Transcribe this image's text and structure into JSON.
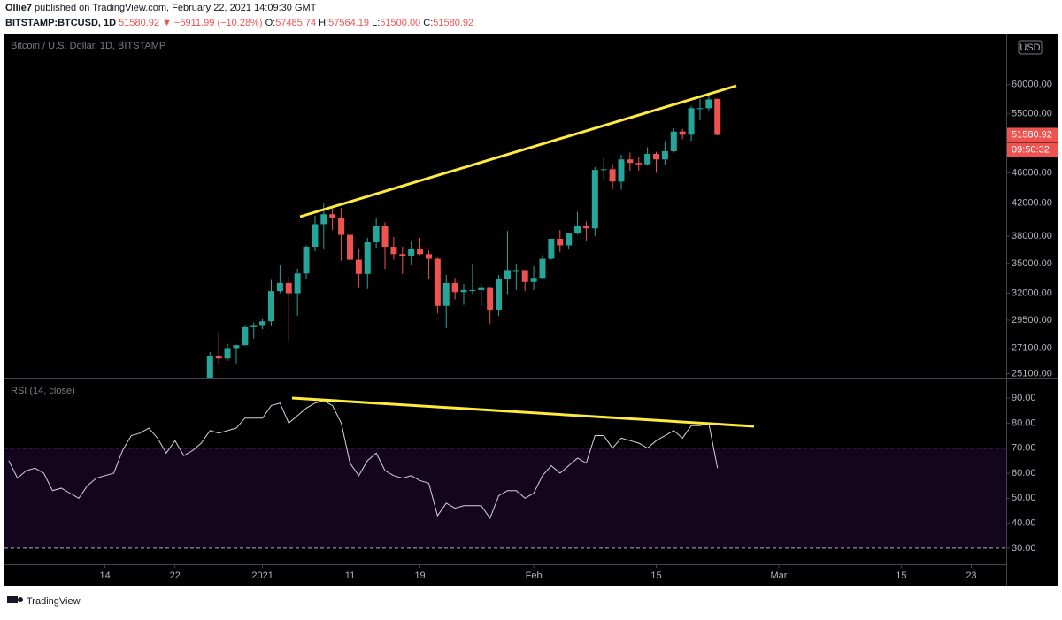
{
  "header": {
    "author": "Ollie7",
    "published": "published on TradingView.com, February 22, 2021 14:09:30 GMT",
    "symbol": "BITSTAMP:BTCUSD, 1D",
    "change": "51580.92 ▼ −5911.99 (−10.28%)",
    "ohlc": [
      {
        "label": "O:",
        "value": "57485.74"
      },
      {
        "label": "H:",
        "value": "57564.19"
      },
      {
        "label": "L:",
        "value": "51500.00"
      },
      {
        "label": "C:",
        "value": "51580.92"
      }
    ]
  },
  "footer": {
    "brand": "TradingView"
  },
  "chart_data": [
    {
      "type": "candlestick",
      "title": "Bitcoin / U.S. Dollar, 1D, BITSTAMP",
      "currency": "USD",
      "log_scale": true,
      "up_color": "#26a69a",
      "down_color": "#ef5350",
      "last_price": 51580.92,
      "countdown": "09:50:32",
      "xlim": [
        "2020-12-02",
        "2021-03-27"
      ],
      "ylim": [
        24800,
        70000
      ],
      "yticks": [
        {
          "value": 25100,
          "label": "25100.00"
        },
        {
          "value": 27100,
          "label": "27100.00"
        },
        {
          "value": 29500,
          "label": "29500.00"
        },
        {
          "value": 32000,
          "label": "32000.00"
        },
        {
          "value": 35000,
          "label": "35000.00"
        },
        {
          "value": 38000,
          "label": "38000.00"
        },
        {
          "value": 42000,
          "label": "42000.00"
        },
        {
          "value": 46000,
          "label": "46000.00"
        },
        {
          "value": 55000,
          "label": "55000.00"
        },
        {
          "value": 60000,
          "label": "60000.00"
        }
      ],
      "x": [
        "2020-12-26",
        "2020-12-27",
        "2020-12-28",
        "2020-12-29",
        "2020-12-30",
        "2020-12-31",
        "2021-01-01",
        "2021-01-02",
        "2021-01-03",
        "2021-01-04",
        "2021-01-05",
        "2021-01-06",
        "2021-01-07",
        "2021-01-08",
        "2021-01-09",
        "2021-01-10",
        "2021-01-11",
        "2021-01-12",
        "2021-01-13",
        "2021-01-14",
        "2021-01-15",
        "2021-01-16",
        "2021-01-17",
        "2021-01-18",
        "2021-01-19",
        "2021-01-20",
        "2021-01-21",
        "2021-01-22",
        "2021-01-23",
        "2021-01-24",
        "2021-01-25",
        "2021-01-26",
        "2021-01-27",
        "2021-01-28",
        "2021-01-29",
        "2021-01-30",
        "2021-01-31",
        "2021-02-01",
        "2021-02-02",
        "2021-02-03",
        "2021-02-04",
        "2021-02-05",
        "2021-02-06",
        "2021-02-07",
        "2021-02-08",
        "2021-02-09",
        "2021-02-10",
        "2021-02-11",
        "2021-02-12",
        "2021-02-13",
        "2021-02-14",
        "2021-02-15",
        "2021-02-16",
        "2021-02-17",
        "2021-02-18",
        "2021-02-19",
        "2021-02-20",
        "2021-02-21",
        "2021-02-22"
      ],
      "open": [
        24700,
        26450,
        26280,
        27050,
        27360,
        28880,
        28990,
        29400,
        32200,
        33000,
        31990,
        33950,
        36800,
        39400,
        40600,
        40150,
        38150,
        35400,
        33900,
        37300,
        39150,
        36800,
        36000,
        35800,
        36600,
        36000,
        35500,
        30800,
        33000,
        32100,
        32300,
        32300,
        32500,
        30400,
        33400,
        34300,
        34300,
        33100,
        33500,
        35500,
        37700,
        36950,
        38300,
        39200,
        38900,
        46400,
        46500,
        44800,
        47900,
        47400,
        47200,
        48700,
        47900,
        49100,
        52100,
        51600,
        55900,
        55900,
        57485.74
      ],
      "high": [
        26800,
        28400,
        27450,
        27400,
        28990,
        29300,
        29600,
        33300,
        34800,
        33600,
        34450,
        36950,
        40400,
        41950,
        41350,
        41350,
        38250,
        36600,
        37800,
        40100,
        39600,
        37900,
        36800,
        37400,
        37800,
        36400,
        35600,
        33800,
        33500,
        32900,
        34900,
        32900,
        32550,
        33800,
        38600,
        34900,
        34300,
        34700,
        35900,
        37700,
        38700,
        38300,
        40900,
        39700,
        46800,
        48100,
        47300,
        48600,
        48900,
        48200,
        49700,
        49000,
        50600,
        52600,
        52500,
        56300,
        57500,
        58300,
        57564.19
      ],
      "low": [
        24500,
        25850,
        26100,
        25900,
        27330,
        27900,
        28700,
        28960,
        32000,
        27700,
        29900,
        33400,
        36300,
        36500,
        38700,
        35300,
        30300,
        32500,
        32400,
        36700,
        34400,
        35400,
        33900,
        34800,
        35900,
        33400,
        30100,
        28800,
        31400,
        30900,
        31950,
        30800,
        29200,
        29900,
        31900,
        32300,
        32200,
        32300,
        33400,
        35400,
        36200,
        36600,
        38200,
        37400,
        38000,
        45000,
        43800,
        43700,
        46300,
        46300,
        47000,
        46000,
        47100,
        48900,
        50900,
        50600,
        53900,
        55500,
        51500
      ],
      "close": [
        26450,
        26280,
        27050,
        27360,
        28880,
        28990,
        29400,
        32200,
        33000,
        31990,
        33950,
        36800,
        39400,
        40600,
        40150,
        38150,
        35400,
        33900,
        37300,
        39150,
        36800,
        36000,
        35800,
        36600,
        36000,
        35500,
        30800,
        33000,
        32100,
        32300,
        32300,
        32500,
        30400,
        33400,
        34300,
        34300,
        33100,
        33500,
        35500,
        37700,
        36950,
        38300,
        39200,
        38900,
        46400,
        46500,
        44800,
        47900,
        47400,
        47200,
        48700,
        47900,
        49100,
        52100,
        51600,
        55900,
        55900,
        57400,
        51580.92
      ]
    },
    {
      "type": "line",
      "title": "RSI (14, close)",
      "color": "#d1d4dc",
      "band": [
        30,
        70
      ],
      "band_color": "#14051f",
      "xlim": [
        "2020-12-02",
        "2021-03-27"
      ],
      "xticks": [
        {
          "value": "2020-12-14",
          "label": "14"
        },
        {
          "value": "2020-12-22",
          "label": "22"
        },
        {
          "value": "2021-01-01",
          "label": "2021"
        },
        {
          "value": "2021-01-11",
          "label": "11"
        },
        {
          "value": "2021-01-19",
          "label": "19"
        },
        {
          "value": "2021-02-01",
          "label": "Feb"
        },
        {
          "value": "2021-02-15",
          "label": "15"
        },
        {
          "value": "2021-03-01",
          "label": "Mar"
        },
        {
          "value": "2021-03-15",
          "label": "15"
        },
        {
          "value": "2021-03-23",
          "label": "23"
        }
      ],
      "ylim": [
        23.6,
        97.8
      ],
      "yticks": [
        {
          "value": 30,
          "label": "30.00"
        },
        {
          "value": 40,
          "label": "40.00"
        },
        {
          "value": 50,
          "label": "50.00"
        },
        {
          "value": 60,
          "label": "60.00"
        },
        {
          "value": 70,
          "label": "70.00"
        },
        {
          "value": 80,
          "label": "80.00"
        },
        {
          "value": 90,
          "label": "90.00"
        }
      ],
      "x": [
        "2020-12-03",
        "2020-12-04",
        "2020-12-05",
        "2020-12-06",
        "2020-12-07",
        "2020-12-08",
        "2020-12-09",
        "2020-12-10",
        "2020-12-11",
        "2020-12-12",
        "2020-12-13",
        "2020-12-14",
        "2020-12-15",
        "2020-12-16",
        "2020-12-17",
        "2020-12-18",
        "2020-12-19",
        "2020-12-20",
        "2020-12-21",
        "2020-12-22",
        "2020-12-23",
        "2020-12-24",
        "2020-12-25",
        "2020-12-26",
        "2020-12-27",
        "2020-12-28",
        "2020-12-29",
        "2020-12-30",
        "2020-12-31",
        "2021-01-01",
        "2021-01-02",
        "2021-01-03",
        "2021-01-04",
        "2021-01-05",
        "2021-01-06",
        "2021-01-07",
        "2021-01-08",
        "2021-01-09",
        "2021-01-10",
        "2021-01-11",
        "2021-01-12",
        "2021-01-13",
        "2021-01-14",
        "2021-01-15",
        "2021-01-16",
        "2021-01-17",
        "2021-01-18",
        "2021-01-19",
        "2021-01-20",
        "2021-01-21",
        "2021-01-22",
        "2021-01-23",
        "2021-01-24",
        "2021-01-25",
        "2021-01-26",
        "2021-01-27",
        "2021-01-28",
        "2021-01-29",
        "2021-01-30",
        "2021-01-31",
        "2021-02-01",
        "2021-02-02",
        "2021-02-03",
        "2021-02-04",
        "2021-02-05",
        "2021-02-06",
        "2021-02-07",
        "2021-02-08",
        "2021-02-09",
        "2021-02-10",
        "2021-02-11",
        "2021-02-12",
        "2021-02-13",
        "2021-02-14",
        "2021-02-15",
        "2021-02-16",
        "2021-02-17",
        "2021-02-18",
        "2021-02-19",
        "2021-02-20",
        "2021-02-21",
        "2021-02-22"
      ],
      "values": [
        65,
        58,
        61,
        62,
        60,
        53,
        54,
        52,
        50,
        55,
        58,
        59,
        60,
        69,
        75,
        76,
        78,
        74,
        68,
        73,
        67,
        69,
        72,
        77,
        76,
        77,
        78,
        82,
        82,
        82,
        87,
        88,
        80,
        83,
        86,
        88,
        89,
        87,
        80,
        64,
        59,
        65,
        68,
        61,
        59,
        58,
        59,
        57,
        56,
        43,
        48,
        46,
        47,
        47,
        47,
        42,
        51,
        53,
        53,
        50,
        52,
        59,
        63,
        60,
        63,
        66,
        64,
        75,
        75,
        70,
        74,
        73,
        72,
        70,
        73,
        75,
        77,
        74,
        79,
        79,
        80,
        62
      ]
    }
  ]
}
